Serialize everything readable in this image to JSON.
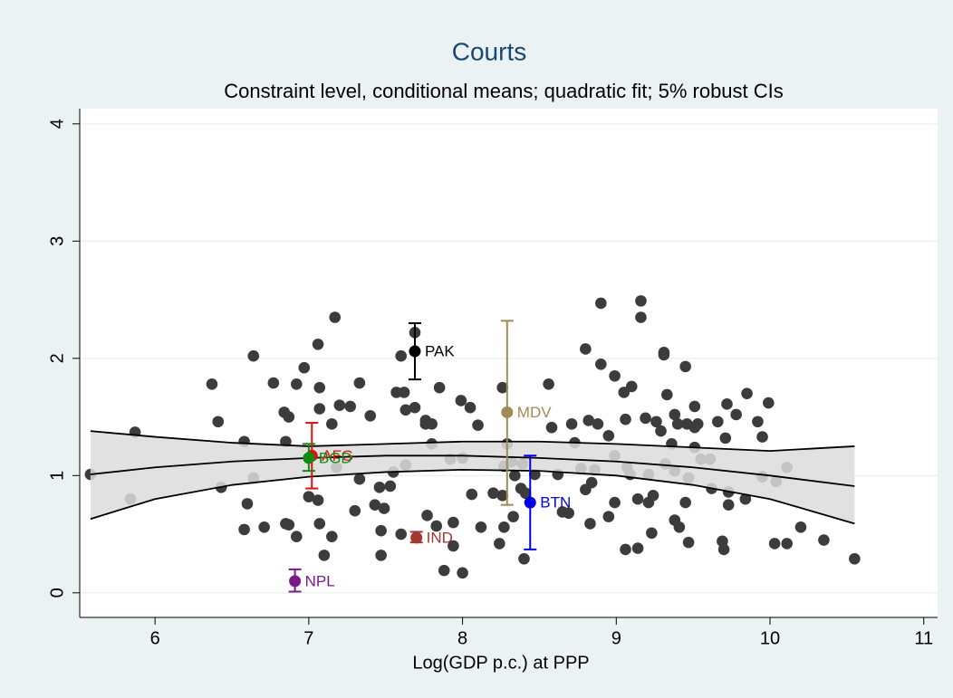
{
  "chart_data": {
    "type": "scatter",
    "title": "Courts",
    "subtitle": "Constraint level, conditional means; quadratic fit; 5% robust CIs",
    "x_label": "Log(GDP p.c.) at PPP",
    "xlim": [
      5.51,
      11.09
    ],
    "ylim": [
      -0.21,
      4.13
    ],
    "xticks": [
      6,
      7,
      8,
      9,
      10,
      11
    ],
    "yticks": [
      0,
      1,
      2,
      3,
      4
    ],
    "grid": true,
    "points": {
      "color": "#3c3c3c",
      "x": [
        5.58,
        5.87,
        5.84,
        6.37,
        6.41,
        6.43,
        6.58,
        6.6,
        6.58,
        6.64,
        6.64,
        6.71,
        6.77,
        6.84,
        6.87,
        6.85,
        6.85,
        6.87,
        6.92,
        6.97,
        6.92,
        7.0,
        7.06,
        7.07,
        7.07,
        7.06,
        7.07,
        7.1,
        7.17,
        7.15,
        7.2,
        7.27,
        7.33,
        7.15,
        7.18,
        7.3,
        7.33,
        7.4,
        7.43,
        7.46,
        7.49,
        7.47,
        7.53,
        7.47,
        7.57,
        7.6,
        7.62,
        7.63,
        7.6,
        7.55,
        7.63,
        7.69,
        7.69,
        7.76,
        7.76,
        7.8,
        7.8,
        7.85,
        7.77,
        7.83,
        7.88,
        7.94,
        7.94,
        7.92,
        8.0,
        7.99,
        8.0,
        8.05,
        8.06,
        8.12,
        8.1,
        8.2,
        8.26,
        8.26,
        8.24,
        8.27,
        8.29,
        8.27,
        8.32,
        8.34,
        8.33,
        8.38,
        8.39,
        8.41,
        8.4,
        8.47,
        8.56,
        8.58,
        8.62,
        8.65,
        8.71,
        8.73,
        8.69,
        8.77,
        8.8,
        8.8,
        8.82,
        8.84,
        8.83,
        8.9,
        8.9,
        8.88,
        8.86,
        8.99,
        8.95,
        8.99,
        8.99,
        8.95,
        9.05,
        9.06,
        9.07,
        9.09,
        9.06,
        9.1,
        9.14,
        9.14,
        9.16,
        9.16,
        9.19,
        9.21,
        9.21,
        9.23,
        9.24,
        9.26,
        9.29,
        9.31,
        9.31,
        9.33,
        9.32,
        9.36,
        9.38,
        9.38,
        9.4,
        9.38,
        9.41,
        9.45,
        9.46,
        9.47,
        9.45,
        9.47,
        9.51,
        9.51,
        9.51,
        9.55,
        9.53,
        9.61,
        9.62,
        9.66,
        9.69,
        9.71,
        9.72,
        9.73,
        9.7,
        9.73,
        9.78,
        9.85,
        9.84,
        9.92,
        9.95,
        9.99,
        9.95,
        10.03,
        10.04,
        10.11,
        10.11,
        10.2,
        10.35,
        10.55
      ],
      "values": [
        1.01,
        1.37,
        0.8,
        1.78,
        1.46,
        0.9,
        1.29,
        0.76,
        0.54,
        2.02,
        0.98,
        0.56,
        1.79,
        1.54,
        1.5,
        1.29,
        0.59,
        0.58,
        1.78,
        1.92,
        0.48,
        0.82,
        2.12,
        1.75,
        1.57,
        0.79,
        0.59,
        0.32,
        2.35,
        1.44,
        1.6,
        1.59,
        1.79,
        0.48,
        1.07,
        0.7,
        0.97,
        1.51,
        0.75,
        0.9,
        0.72,
        0.53,
        0.91,
        0.32,
        1.71,
        2.02,
        1.71,
        1.56,
        0.5,
        1.03,
        1.09,
        2.22,
        1.58,
        1.47,
        1.44,
        1.44,
        1.27,
        1.75,
        0.66,
        0.57,
        0.19,
        0.4,
        0.6,
        1.14,
        1.15,
        1.64,
        0.17,
        1.58,
        0.84,
        0.56,
        1.43,
        0.85,
        1.75,
        0.83,
        0.42,
        0.56,
        1.27,
        1.08,
        1.12,
        1.0,
        0.65,
        0.89,
        1.1,
        0.85,
        0.29,
        1.01,
        1.78,
        1.41,
        1.01,
        0.69,
        1.44,
        1.28,
        0.68,
        1.06,
        0.88,
        2.08,
        1.47,
        0.94,
        0.59,
        2.47,
        1.95,
        1.44,
        1.05,
        1.85,
        1.34,
        1.17,
        0.77,
        0.65,
        1.71,
        1.48,
        1.07,
        1.01,
        0.37,
        1.76,
        0.8,
        0.38,
        2.49,
        2.35,
        1.49,
        1.01,
        0.77,
        0.51,
        0.83,
        1.46,
        1.38,
        2.03,
        2.05,
        1.69,
        1.1,
        1.27,
        1.52,
        1.04,
        1.44,
        0.62,
        0.56,
        1.93,
        1.44,
        0.98,
        0.77,
        0.43,
        1.59,
        1.41,
        1.24,
        1.14,
        1.44,
        1.14,
        0.89,
        1.46,
        0.44,
        1.32,
        1.61,
        0.75,
        0.37,
        0.86,
        1.52,
        1.7,
        0.8,
        1.46,
        1.33,
        1.62,
        0.99,
        0.42,
        0.95,
        1.07,
        0.42,
        0.56,
        0.45,
        0.29
      ]
    },
    "fit": {
      "color": "#000000",
      "band_color": "#dcdcdc",
      "x": [
        5.58,
        6,
        6.5,
        7,
        7.5,
        8,
        8.5,
        9,
        9.5,
        10,
        10.55
      ],
      "values": [
        1.01,
        1.07,
        1.12,
        1.15,
        1.17,
        1.17,
        1.15,
        1.12,
        1.07,
        1.0,
        0.91
      ],
      "lower": [
        0.63,
        0.8,
        0.92,
        0.99,
        1.03,
        1.05,
        1.04,
        1.0,
        0.92,
        0.8,
        0.59
      ],
      "upper": [
        1.38,
        1.33,
        1.28,
        1.25,
        1.27,
        1.29,
        1.29,
        1.27,
        1.24,
        1.21,
        1.25
      ]
    },
    "highlights": [
      {
        "name": "PAK",
        "color": "#000000",
        "x": 7.69,
        "value": 2.06,
        "ci": [
          1.82,
          2.3
        ]
      },
      {
        "name": "MDV",
        "color": "#a08a55",
        "x": 8.29,
        "value": 1.54,
        "ci": [
          0.75,
          2.32
        ]
      },
      {
        "name": "BTN",
        "color": "#0000e0",
        "x": 8.44,
        "value": 0.77,
        "ci": [
          0.37,
          1.17
        ]
      },
      {
        "name": "IND",
        "color": "#a0392f",
        "x": 7.7,
        "value": 0.47,
        "ci": [
          0.43,
          0.52
        ]
      },
      {
        "name": "NPL",
        "color": "#7a1a8a",
        "x": 6.91,
        "value": 0.1,
        "ci": [
          0.01,
          0.2
        ]
      },
      {
        "name": "AFG",
        "color": "#e01010",
        "x": 7.02,
        "value": 1.17,
        "ci": [
          0.89,
          1.45
        ]
      },
      {
        "name": "BGD",
        "color": "#108a10",
        "x": 7.0,
        "value": 1.15,
        "ci": [
          1.04,
          1.27
        ]
      }
    ]
  }
}
